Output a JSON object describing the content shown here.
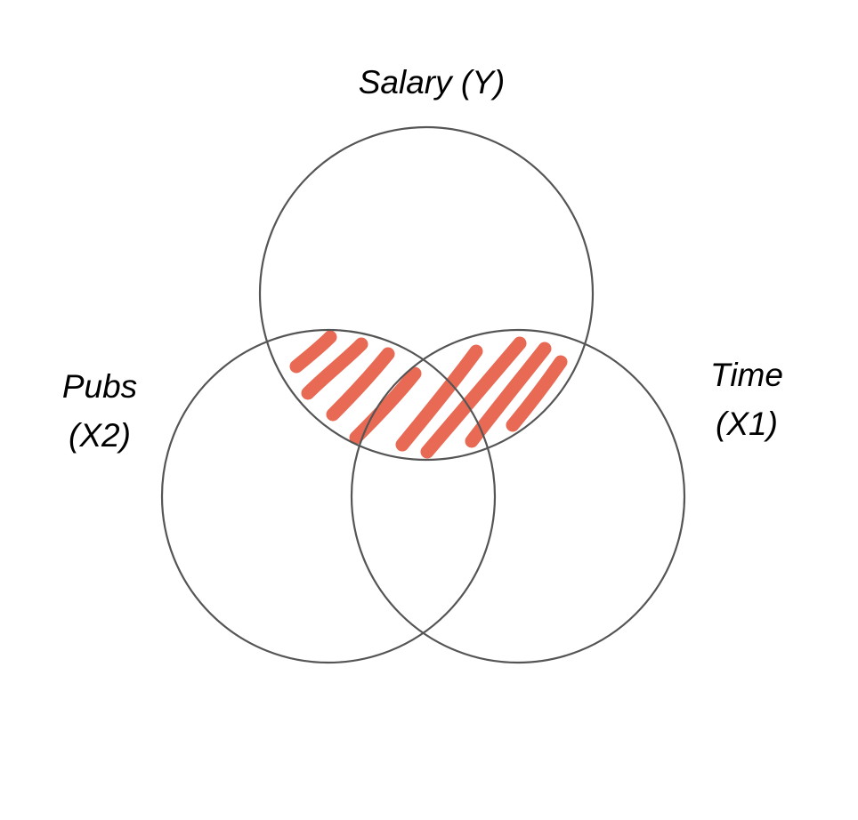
{
  "diagram": {
    "labels": {
      "salary": "Salary (Y)",
      "pubs_line1": "Pubs",
      "pubs_line2": "(X2)",
      "time_line1": "Time",
      "time_line2": "(X1)"
    },
    "circle_color": "#555555",
    "highlight_color": "#e96a54"
  }
}
